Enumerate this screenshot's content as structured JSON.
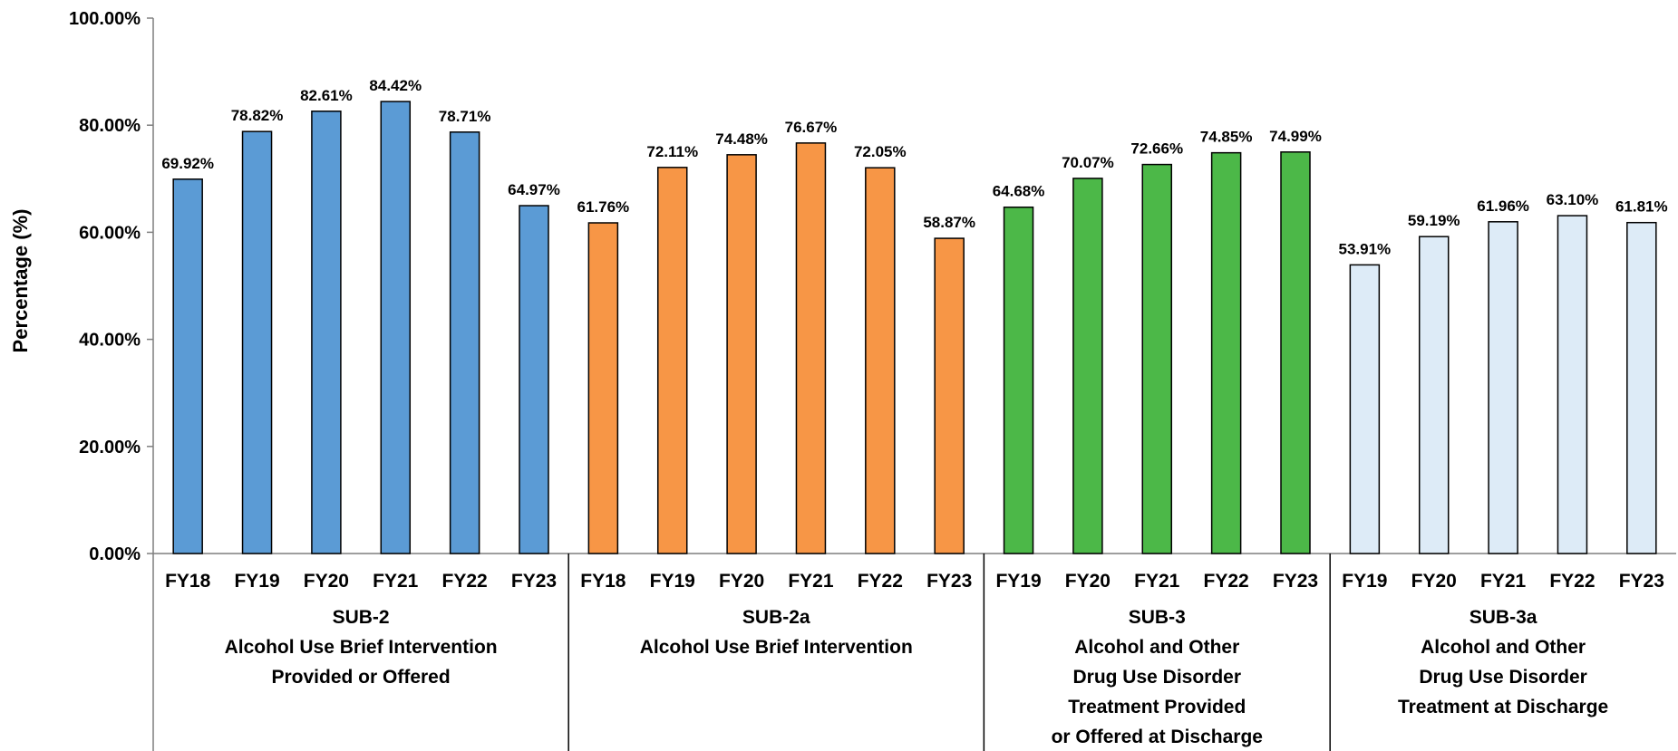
{
  "chart_data": {
    "type": "bar",
    "ylabel": "Percentage (%)",
    "ylim": [
      0,
      100
    ],
    "y_ticks": [
      "0.00%",
      "20.00%",
      "40.00%",
      "60.00%",
      "80.00%",
      "100.00%"
    ],
    "y_tick_values": [
      0,
      20,
      40,
      60,
      80,
      100
    ],
    "grid": false,
    "legend": "none",
    "groups": [
      {
        "name_lines": [
          "SUB-2",
          "Alcohol Use Brief Intervention",
          "Provided or Offered"
        ],
        "color": "#5B9BD5",
        "categories": [
          "FY18",
          "FY19",
          "FY20",
          "FY21",
          "FY22",
          "FY23"
        ],
        "values": [
          69.92,
          78.82,
          82.61,
          84.42,
          78.71,
          64.97
        ],
        "labels": [
          "69.92%",
          "78.82%",
          "82.61%",
          "84.42%",
          "78.71%",
          "64.97%"
        ]
      },
      {
        "name_lines": [
          "SUB-2a",
          "Alcohol Use Brief Intervention"
        ],
        "color": "#F79646",
        "categories": [
          "FY18",
          "FY19",
          "FY20",
          "FY21",
          "FY22",
          "FY23"
        ],
        "values": [
          61.76,
          72.11,
          74.48,
          76.67,
          72.05,
          58.87
        ],
        "labels": [
          "61.76%",
          "72.11%",
          "74.48%",
          "76.67%",
          "72.05%",
          "58.87%"
        ]
      },
      {
        "name_lines": [
          "SUB-3",
          "Alcohol and Other",
          "Drug Use Disorder",
          "Treatment Provided",
          "or Offered at Discharge"
        ],
        "color": "#4CB848",
        "categories": [
          "FY19",
          "FY20",
          "FY21",
          "FY22",
          "FY23"
        ],
        "values": [
          64.68,
          70.07,
          72.66,
          74.85,
          74.99
        ],
        "labels": [
          "64.68%",
          "70.07%",
          "72.66%",
          "74.85%",
          "74.99%"
        ]
      },
      {
        "name_lines": [
          "SUB-3a",
          "Alcohol and Other",
          "Drug Use Disorder",
          "Treatment at Discharge"
        ],
        "color": "#DDEBF7",
        "categories": [
          "FY19",
          "FY20",
          "FY21",
          "FY22",
          "FY23"
        ],
        "values": [
          53.91,
          59.19,
          61.96,
          63.1,
          61.81
        ],
        "labels": [
          "53.91%",
          "59.19%",
          "61.96%",
          "63.10%",
          "61.81%"
        ]
      }
    ]
  }
}
